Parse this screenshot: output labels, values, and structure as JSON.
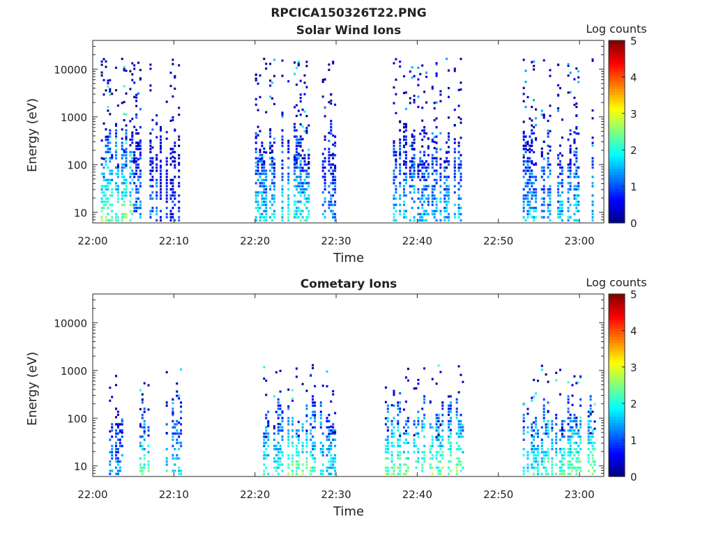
{
  "figure_title": "RPCICA150326T22.PNG",
  "colorbar_label": "Log counts",
  "chart_data": [
    {
      "type": "heatmap",
      "title": "Solar Wind Ions",
      "xlabel": "Time",
      "ylabel": "Energy (eV)",
      "x_ticks": [
        "22:00",
        "22:10",
        "22:20",
        "22:30",
        "22:40",
        "22:50",
        "23:00"
      ],
      "xlim": [
        "22:00",
        "23:03"
      ],
      "y_scale": "log",
      "ylim": [
        6,
        40000
      ],
      "y_ticks": [
        {
          "value": 10,
          "label": "10"
        },
        {
          "value": 100,
          "label": "100"
        },
        {
          "value": 1000,
          "label": "1000"
        },
        {
          "value": 10000,
          "label": "10000"
        }
      ],
      "colorbar": {
        "label": "Log counts",
        "min": 0,
        "max": 5,
        "ticks": [
          "0",
          "1",
          "2",
          "3",
          "4",
          "5"
        ],
        "colormap": "jet"
      },
      "activity_intervals": [
        {
          "start": "22:01",
          "end": "22:05",
          "level": 2.4
        },
        {
          "start": "22:05",
          "end": "22:08",
          "level": 1.3
        },
        {
          "start": "22:08",
          "end": "22:11",
          "level": 0.8
        },
        {
          "start": "22:20",
          "end": "22:24",
          "level": 1.8
        },
        {
          "start": "22:24",
          "end": "22:27",
          "level": 2.0
        },
        {
          "start": "22:28",
          "end": "22:30",
          "level": 1.3
        },
        {
          "start": "22:37",
          "end": "22:40",
          "level": 1.7
        },
        {
          "start": "22:40",
          "end": "22:43",
          "level": 1.6
        },
        {
          "start": "22:43",
          "end": "22:46",
          "level": 1.6
        },
        {
          "start": "22:53",
          "end": "22:57",
          "level": 1.6
        },
        {
          "start": "22:57",
          "end": "22:59",
          "level": 1.6
        },
        {
          "start": "22:59",
          "end": "23:02",
          "level": 1.8
        }
      ]
    },
    {
      "type": "heatmap",
      "title": "Cometary Ions",
      "xlabel": "Time",
      "ylabel": "Energy (eV)",
      "x_ticks": [
        "22:00",
        "22:10",
        "22:20",
        "22:30",
        "22:40",
        "22:50",
        "23:00"
      ],
      "xlim": [
        "22:00",
        "23:03"
      ],
      "y_scale": "log",
      "ylim": [
        6,
        40000
      ],
      "y_ticks": [
        {
          "value": 10,
          "label": "10"
        },
        {
          "value": 100,
          "label": "100"
        },
        {
          "value": 1000,
          "label": "1000"
        },
        {
          "value": 10000,
          "label": "10000"
        }
      ],
      "colorbar": {
        "label": "Log counts",
        "min": 0,
        "max": 5,
        "ticks": [
          "0",
          "1",
          "2",
          "3",
          "4",
          "5"
        ],
        "colormap": "jet"
      },
      "activity_intervals": [
        {
          "start": "22:02",
          "end": "22:04",
          "level": 1.4
        },
        {
          "start": "22:05",
          "end": "22:07",
          "level": 2.2
        },
        {
          "start": "22:09",
          "end": "22:11",
          "level": 1.9
        },
        {
          "start": "22:21",
          "end": "22:24",
          "level": 2.1
        },
        {
          "start": "22:24",
          "end": "22:27",
          "level": 2.5
        },
        {
          "start": "22:27",
          "end": "22:30",
          "level": 1.9
        },
        {
          "start": "22:36",
          "end": "22:40",
          "level": 2.4
        },
        {
          "start": "22:40",
          "end": "22:43",
          "level": 2.5
        },
        {
          "start": "22:43",
          "end": "22:46",
          "level": 2.5
        },
        {
          "start": "22:53",
          "end": "22:56",
          "level": 2.0
        },
        {
          "start": "22:56",
          "end": "22:59",
          "level": 2.3
        },
        {
          "start": "22:59",
          "end": "23:02",
          "level": 2.6
        }
      ]
    }
  ]
}
